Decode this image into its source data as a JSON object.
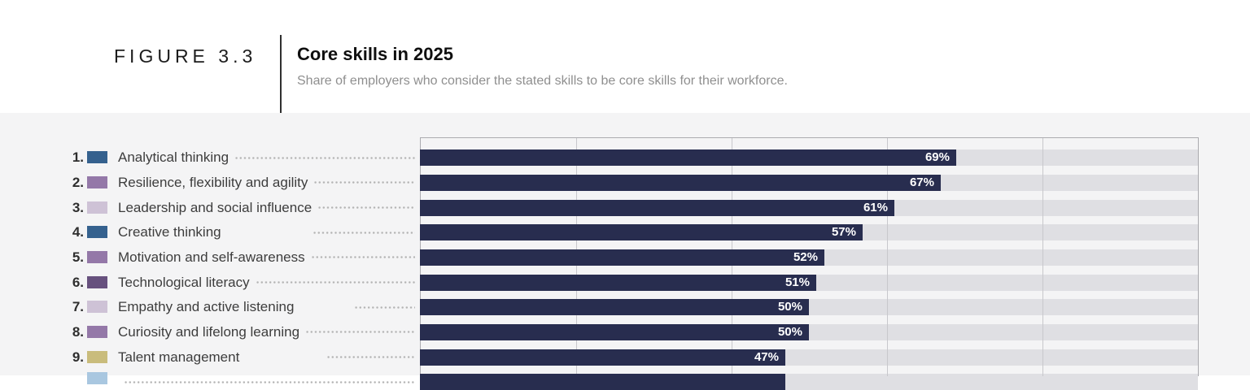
{
  "header": {
    "figure_label": "FIGURE 3.3",
    "title": "Core skills in 2025",
    "subtitle": "Share of employers who consider the stated skills to be core skills for their workforce."
  },
  "chart_data": {
    "type": "bar",
    "orientation": "horizontal",
    "title": "Core skills in 2025",
    "xlabel": "",
    "ylabel": "",
    "xlim": [
      0,
      100
    ],
    "unit": "%",
    "gridlines_pct": [
      0,
      20,
      40,
      60,
      80,
      100
    ],
    "grid": "on",
    "bar_color": "#282d4f",
    "track_color": "#dfdfe3",
    "value_label_color": "#ffffff",
    "rows": [
      {
        "rank": "1.",
        "label": "Analytical thinking",
        "value": 69,
        "value_label": "69%",
        "swatch": "#35618e"
      },
      {
        "rank": "2.",
        "label": "Resilience, flexibility and agility",
        "value": 67,
        "value_label": "67%",
        "swatch": "#9478a8"
      },
      {
        "rank": "3.",
        "label": "Leadership and social influence",
        "value": 61,
        "value_label": "61%",
        "swatch": "#cec2d6"
      },
      {
        "rank": "4.",
        "label": "Creative thinking",
        "value": 57,
        "value_label": "57%",
        "swatch": "#35618e"
      },
      {
        "rank": "5.",
        "label": "Motivation and self-awareness",
        "value": 52,
        "value_label": "52%",
        "swatch": "#9478a8"
      },
      {
        "rank": "6.",
        "label": "Technological literacy",
        "value": 51,
        "value_label": "51%",
        "swatch": "#67517e"
      },
      {
        "rank": "7.",
        "label": "Empathy and active listening",
        "value": 50,
        "value_label": "50%",
        "swatch": "#cec2d6"
      },
      {
        "rank": "8.",
        "label": "Curiosity and lifelong learning",
        "value": 50,
        "value_label": "50%",
        "swatch": "#9478a8"
      },
      {
        "rank": "9.",
        "label": "Talent management",
        "value": 47,
        "value_label": "47%",
        "swatch": "#c9bc7c"
      },
      {
        "rank": "",
        "label": "",
        "value": 47,
        "value_label": "",
        "swatch": "#a9c7e0",
        "partially_visible": true
      }
    ]
  }
}
